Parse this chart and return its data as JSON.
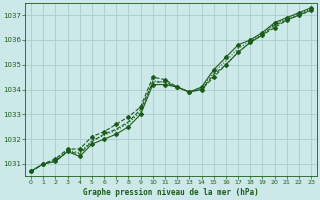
{
  "background_color": "#cce8e8",
  "grid_color": "#aacccc",
  "line_color": "#1a5c1a",
  "xlabel": "Graphe pression niveau de la mer (hPa)",
  "xlabel_color": "#1a5c1a",
  "tick_color": "#1a5c1a",
  "xlim": [
    -0.5,
    23.5
  ],
  "ylim": [
    1030.5,
    1037.5
  ],
  "yticks": [
    1031,
    1032,
    1033,
    1034,
    1035,
    1036,
    1037
  ],
  "xticks": [
    0,
    1,
    2,
    3,
    4,
    5,
    6,
    7,
    8,
    9,
    10,
    11,
    12,
    13,
    14,
    15,
    16,
    17,
    18,
    19,
    20,
    21,
    22,
    23
  ],
  "series": [
    [
      1030.7,
      1031.0,
      1031.1,
      1031.5,
      1031.3,
      1031.8,
      1032.0,
      1032.2,
      1032.5,
      1033.0,
      1034.2,
      1034.2,
      1034.1,
      1033.9,
      1034.1,
      1034.8,
      1035.3,
      1035.8,
      1036.0,
      1036.3,
      1036.7,
      1036.9,
      1037.1,
      1037.3
    ],
    [
      1030.7,
      1031.0,
      1031.1,
      1031.5,
      1031.4,
      1031.9,
      1032.2,
      1032.4,
      1032.7,
      1033.2,
      1034.3,
      1034.3,
      1034.1,
      1033.9,
      1034.0,
      1034.6,
      1035.0,
      1035.5,
      1035.9,
      1036.2,
      1036.6,
      1036.8,
      1037.0,
      1037.2
    ],
    [
      1030.7,
      1031.0,
      1031.15,
      1031.55,
      1031.45,
      1031.95,
      1032.15,
      1032.35,
      1032.65,
      1033.1,
      1034.35,
      1034.3,
      1034.1,
      1033.9,
      1034.05,
      1034.7,
      1035.15,
      1035.65,
      1035.95,
      1036.25,
      1036.65,
      1036.85,
      1037.05,
      1037.25
    ],
    [
      1030.7,
      1031.0,
      1031.2,
      1031.6,
      1031.6,
      1032.1,
      1032.3,
      1032.6,
      1032.9,
      1033.3,
      1034.5,
      1034.4,
      1034.1,
      1033.9,
      1034.0,
      1034.5,
      1035.0,
      1035.5,
      1035.9,
      1036.2,
      1036.5,
      1036.8,
      1037.0,
      1037.2
    ]
  ],
  "marker_series": [
    0,
    3
  ],
  "marker": "D",
  "markersize": 2.0,
  "linewidth": 0.8,
  "xlabel_fontsize": 5.5,
  "tick_fontsize": 5,
  "figsize": [
    3.2,
    2.0
  ],
  "dpi": 100
}
